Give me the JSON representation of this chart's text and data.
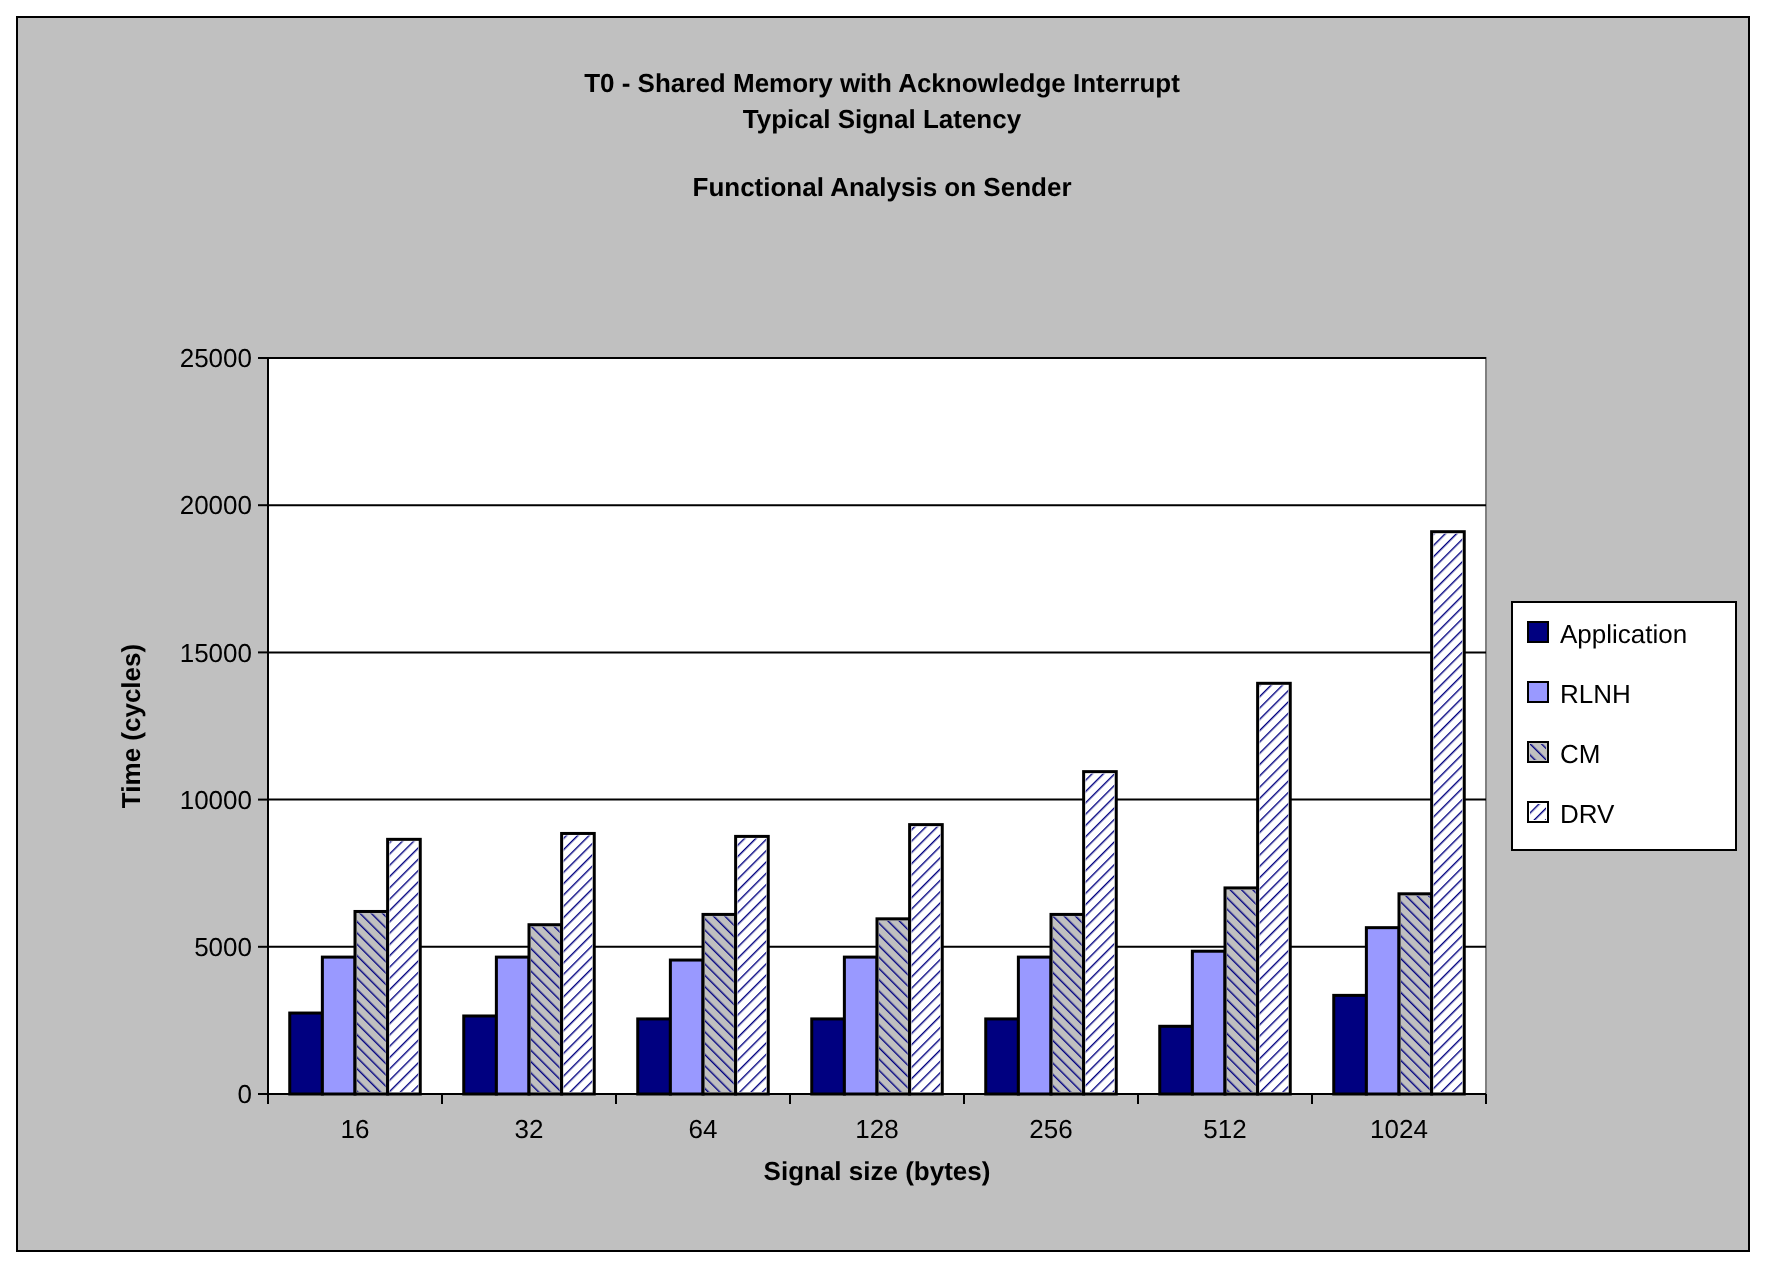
{
  "chart_data": {
    "type": "bar",
    "title": "T0 - Shared Memory with Acknowledge Interrupt\nTypical Signal Latency",
    "subtitle": "Functional Analysis on Sender",
    "xlabel": "Signal size (bytes)",
    "ylabel": "Time (cycles)",
    "categories": [
      "16",
      "32",
      "64",
      "128",
      "256",
      "512",
      "1024"
    ],
    "series": [
      {
        "name": "Application",
        "color": "#000080",
        "values": [
          2750,
          2650,
          2550,
          2550,
          2550,
          2300,
          3350
        ]
      },
      {
        "name": "RLNH",
        "color": "#9999ff",
        "values": [
          4650,
          4650,
          4550,
          4650,
          4650,
          4850,
          5650
        ]
      },
      {
        "name": "CM",
        "color": "#c0c0c0",
        "values": [
          6200,
          5750,
          6100,
          5950,
          6100,
          7000,
          6800
        ]
      },
      {
        "name": "DRV",
        "color": "#ffffff",
        "values": [
          8650,
          8850,
          8750,
          9150,
          10950,
          13950,
          19100
        ]
      }
    ],
    "ylim": [
      0,
      25000
    ],
    "yticks": [
      0,
      5000,
      10000,
      15000,
      20000,
      25000
    ],
    "grid": "y",
    "legend": "right"
  }
}
